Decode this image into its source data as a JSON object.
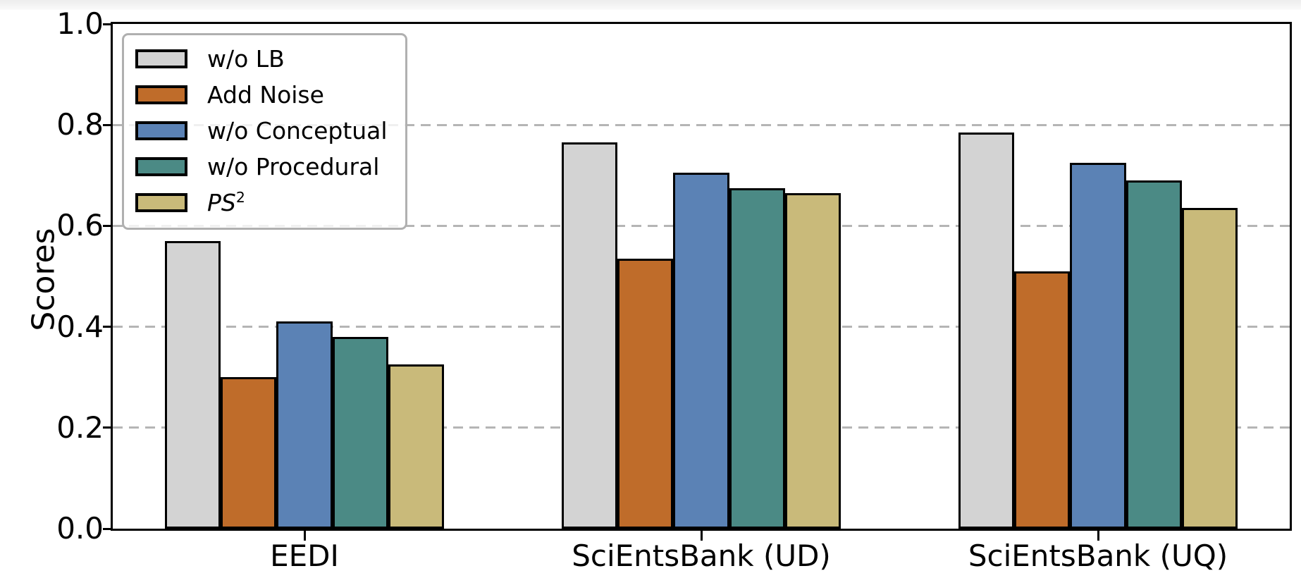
{
  "chart_data": {
    "type": "bar",
    "title": "",
    "xlabel": "",
    "ylabel": "Scores",
    "ylim": [
      0.0,
      1.0
    ],
    "yticks": [
      "0.0",
      "0.2",
      "0.4",
      "0.6",
      "0.8",
      "1.0"
    ],
    "grid": "horizontal dashed at yticks",
    "legend_position": "upper-left",
    "categories": [
      "EEDI",
      "SciEntsBank (UD)",
      "SciEntsBank (UQ)"
    ],
    "series": [
      {
        "name": "w/o LB",
        "color": "#d3d3d3",
        "values": [
          0.57,
          0.765,
          0.785
        ]
      },
      {
        "name": "Add Noise",
        "color": "#bf6c2a",
        "values": [
          0.3,
          0.535,
          0.51
        ]
      },
      {
        "name": "w/o Conceptual",
        "color": "#5b82b5",
        "values": [
          0.41,
          0.705,
          0.725
        ]
      },
      {
        "name": "w/o Procedural",
        "color": "#4b8a85",
        "values": [
          0.38,
          0.675,
          0.69
        ]
      },
      {
        "name": "PS²",
        "color": "#c9ba7a",
        "values": [
          0.325,
          0.665,
          0.635
        ],
        "italic": true,
        "label_base": "PS",
        "label_sup": "2"
      }
    ],
    "bar_edge_color": "#000000",
    "grid_color": "#b5b5b5"
  }
}
